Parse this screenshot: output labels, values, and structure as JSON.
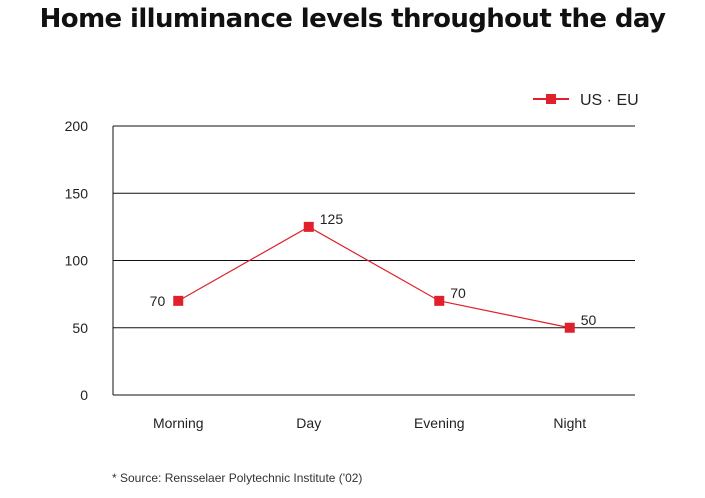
{
  "chart_data": {
    "type": "line",
    "title": "Home illuminance levels throughout the day",
    "categories": [
      "Morning",
      "Day",
      "Evening",
      "Night"
    ],
    "series": [
      {
        "name": "US · EU",
        "values": [
          70,
          125,
          70,
          50
        ],
        "labels": [
          "70",
          "125",
          "70",
          "50"
        ],
        "color": "#e0202a"
      }
    ],
    "ylim": [
      0,
      200
    ],
    "yticks": [
      0,
      50,
      100,
      150,
      200
    ],
    "grid": true,
    "legend_position": "top-right",
    "xlabel": "",
    "ylabel": ""
  },
  "footnote": "* Source: Rensselaer Polytechnic Institute ('02)"
}
